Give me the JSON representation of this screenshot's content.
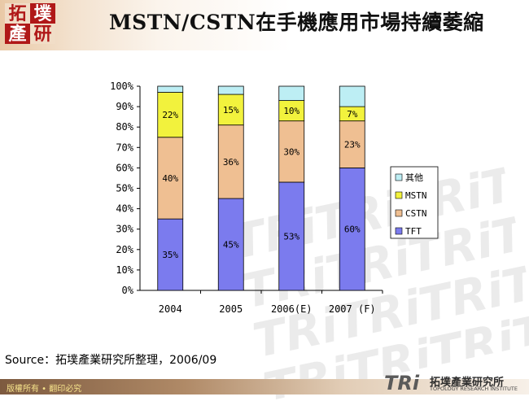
{
  "logo": {
    "chars": [
      "拓",
      "墣",
      "產",
      "研"
    ]
  },
  "title": "MSTN/CSTN在手機應用市場持續萎縮",
  "chart_data": {
    "type": "bar",
    "stacked": true,
    "categories": [
      "2004",
      "2005",
      "2006(E)",
      "2007 (F)"
    ],
    "series": [
      {
        "name": "TFT",
        "values": [
          35,
          45,
          53,
          60
        ],
        "labels": [
          "35%",
          "45%",
          "53%",
          "60%"
        ],
        "color": "#7b7bee"
      },
      {
        "name": "CSTN",
        "values": [
          40,
          36,
          30,
          23
        ],
        "labels": [
          "40%",
          "36%",
          "30%",
          "23%"
        ],
        "color": "#efbf92"
      },
      {
        "name": "MSTN",
        "values": [
          22,
          15,
          10,
          7
        ],
        "labels": [
          "22%",
          "15%",
          "10%",
          "7%"
        ],
        "color": "#f2f23d"
      },
      {
        "name": "其他",
        "values": [
          3,
          4,
          7,
          10
        ],
        "labels": [
          "",
          "",
          "",
          ""
        ],
        "color": "#bdeef4"
      }
    ],
    "ylim": [
      0,
      100
    ],
    "yticks": [
      "0%",
      "10%",
      "20%",
      "30%",
      "40%",
      "50%",
      "60%",
      "70%",
      "80%",
      "90%",
      "100%"
    ],
    "legend": {
      "placement": "right",
      "order": [
        "其他",
        "MSTN",
        "CSTN",
        "TFT"
      ]
    },
    "grid": false
  },
  "source": "Source：拓墣產業研究所整理，2006/09",
  "footer": {
    "copyright": "版權所有 • 翻印必究",
    "brand_mark": "TRi",
    "brand_name": "拓墣產業研究所",
    "brand_english": "TOPOLOGY RESEARCH INSTITUTE"
  }
}
